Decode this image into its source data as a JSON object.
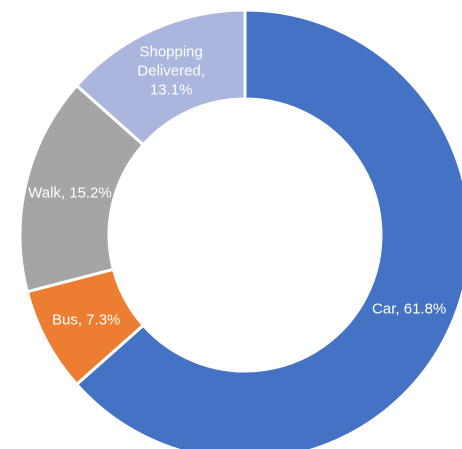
{
  "chart_data": {
    "type": "pie",
    "categories": [
      "Car",
      "Bus",
      "Walk",
      "Shopping Delivered"
    ],
    "values": [
      61.8,
      7.3,
      15.2,
      13.1
    ],
    "value_labels": [
      "Car, 61.8%",
      "Bus, 7.3%",
      "Walk, 15.2%",
      "Shopping Delivered, 13.1%"
    ],
    "colors": [
      "#4472c4",
      "#ed7d31",
      "#a5a5a5",
      "#aab6de"
    ]
  }
}
